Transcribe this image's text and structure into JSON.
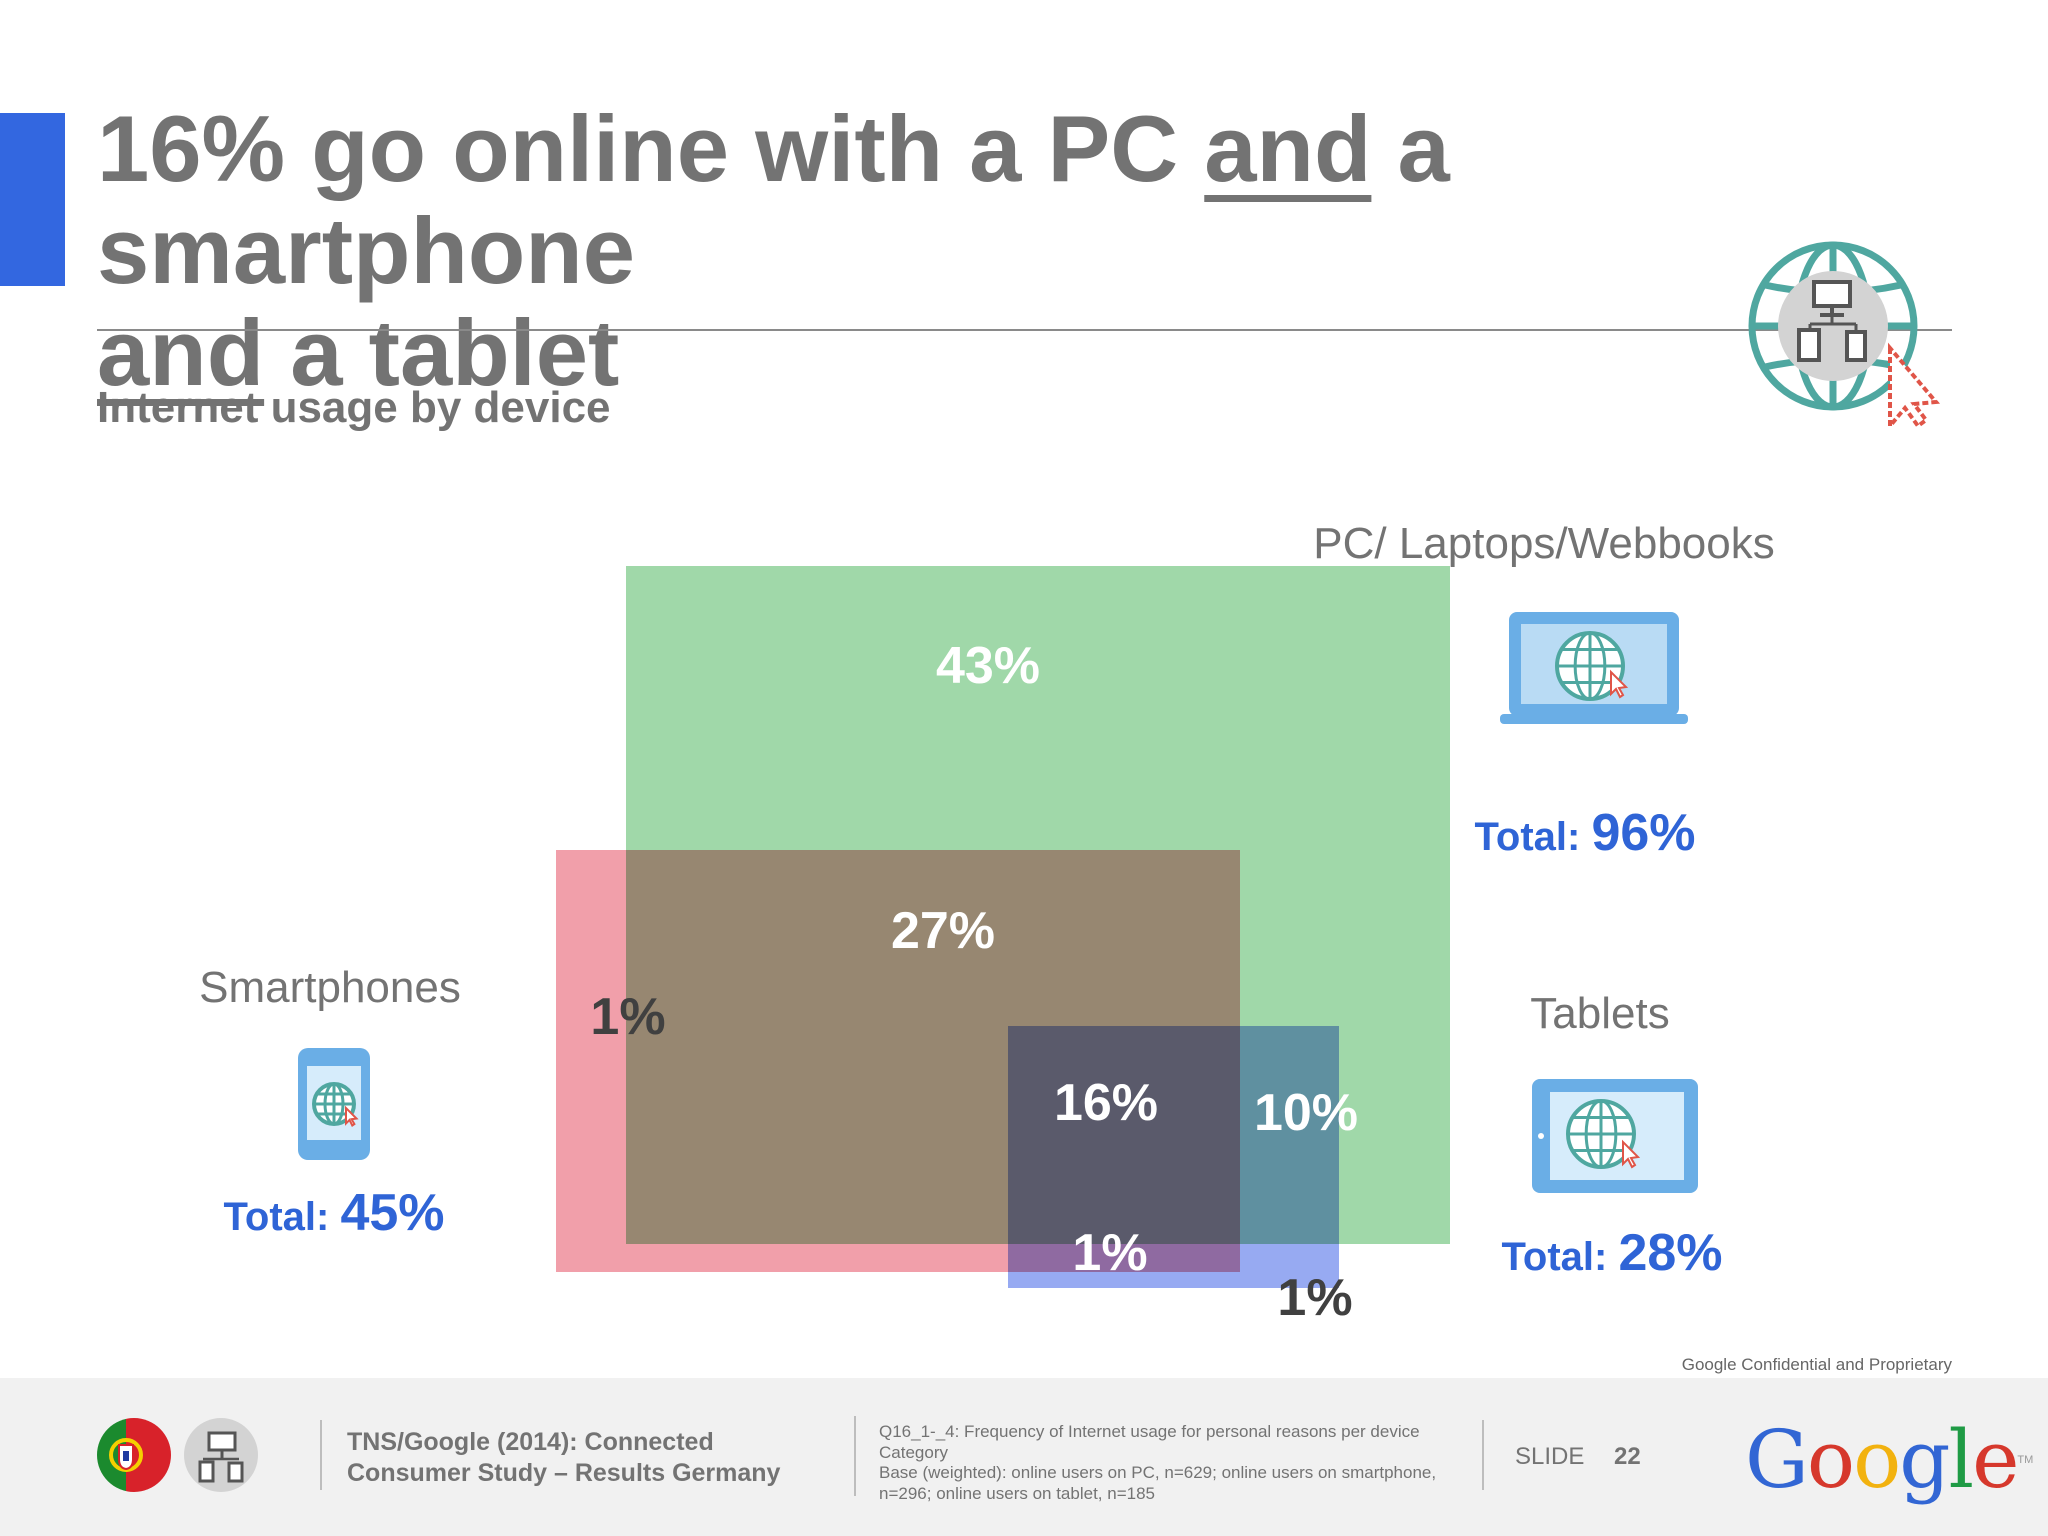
{
  "slide": {
    "title_parts": [
      "16% go online with a PC ",
      "and",
      " a smartphone ",
      "and",
      " a tablet"
    ],
    "subtitle": "Internet usage by device",
    "confidential": "Google Confidential and Proprietary",
    "footer": {
      "source": "TNS/Google (2014): Connected Consumer Study – Results Germany",
      "note": "Q16_1-_4: Frequency of Internet usage for personal reasons per device Category\nBase (weighted): online users on PC, n=629; online users on smartphone, n=296; online users on tablet, n=185",
      "slide_label": "SLIDE",
      "slide_number": "22",
      "logo_text": "Google",
      "logo_tm": "TM"
    }
  },
  "chart_data": {
    "type": "venn",
    "sets": [
      {
        "name": "PC/ Laptops/Webbooks",
        "total_label": "Total",
        "total_value": "96%",
        "color": "#8fd19a",
        "icon": "laptop-globe-icon"
      },
      {
        "name": "Smartphones",
        "total_label": "Total",
        "total_value": "45%",
        "color": "#ef8e9b",
        "icon": "smartphone-globe-icon"
      },
      {
        "name": "Tablets",
        "total_label": "Total",
        "total_value": "28%",
        "color": "#7d95ef",
        "icon": "tablet-globe-icon"
      }
    ],
    "regions": [
      {
        "sets": [
          "PC/ Laptops/Webbooks"
        ],
        "value": "43%"
      },
      {
        "sets": [
          "PC/ Laptops/Webbooks",
          "Smartphones"
        ],
        "value": "27%"
      },
      {
        "sets": [
          "Smartphones"
        ],
        "value": "1%"
      },
      {
        "sets": [
          "PC/ Laptops/Webbooks",
          "Smartphones",
          "Tablets"
        ],
        "value": "16%"
      },
      {
        "sets": [
          "PC/ Laptops/Webbooks",
          "Tablets"
        ],
        "value": "10%"
      },
      {
        "sets": [
          "Smartphones",
          "Tablets"
        ],
        "value": "1%"
      },
      {
        "sets": [
          "Tablets"
        ],
        "value": "1%"
      }
    ],
    "colors": {
      "total_text": "#2f64d6",
      "label_text": "#737373",
      "accent": "#3367e0",
      "globe": "#4fa7a0",
      "cursor": "#e05548"
    }
  }
}
